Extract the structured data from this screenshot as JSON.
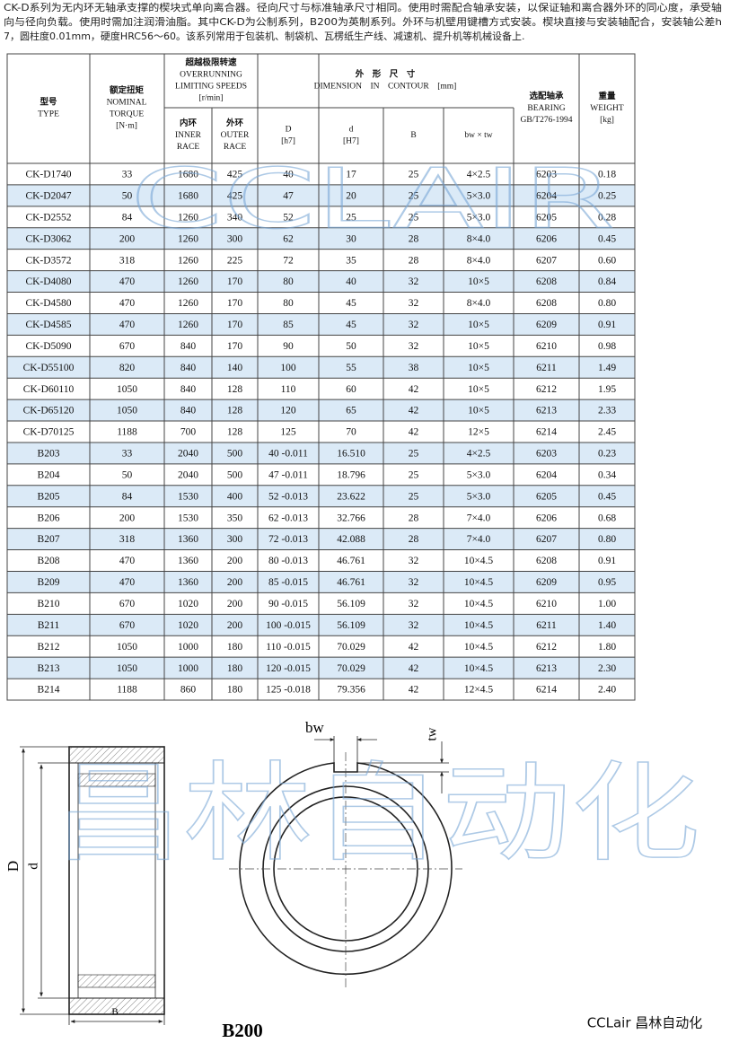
{
  "intro": {
    "lines": [
      "CK-D系列为无内环无轴承支撑的楔块式单向离合器。径向尺寸与标准轴承尺寸相同。使用时需配合轴承安装，以保证轴和离合器外环的同心度，承受轴",
      "向与径向负载。使用时需加注润滑油脂。其中CK-D为公制系列，B200为英制系列。外环与机壁用键槽方式安装。楔块直接与安装轴配合，安装轴公差h",
      "7，圆柱度0.01mm，硬度HRC56～60。该系列常用于包装机、制袋机、瓦楞纸生产线、减速机、提升机等机械设备上."
    ]
  },
  "table": {
    "header_cells": [
      {
        "lines": [
          "型号",
          "TYPE"
        ]
      },
      {
        "lines": [
          "额定扭矩",
          "NOMINAL",
          "TORQUE",
          "[N·m]"
        ]
      },
      {
        "lines": [
          "超越极限转速",
          "OVERRUNNING",
          "LIMITING SPEEDS",
          "[r/min]"
        ]
      },
      {
        "lines": [
          "内环",
          "INNER",
          "RACE"
        ]
      },
      {
        "lines": [
          "外环",
          "OUTER",
          "RACE"
        ]
      },
      {
        "lines": [
          "外　形　尺　寸",
          "DIMENSION　IN　CONTOUR　[mm]"
        ]
      },
      {
        "lines": [
          "D",
          "[h7]"
        ]
      },
      {
        "lines": [
          "d",
          "[H7]"
        ]
      },
      {
        "lines": [
          "B"
        ]
      },
      {
        "lines": [
          "bw × tw"
        ]
      },
      {
        "lines": [
          "选配轴承",
          "BEARING",
          "GB/T276-1994"
        ]
      },
      {
        "lines": [
          "重量",
          "WEIGHT",
          "[kg]"
        ]
      }
    ],
    "rows": [
      [
        "CK-D1740",
        "33",
        "1680",
        "425",
        "40",
        "17",
        "25",
        "4×2.5",
        "6203",
        "0.18"
      ],
      [
        "CK-D2047",
        "50",
        "1680",
        "425",
        "47",
        "20",
        "25",
        "5×3.0",
        "6204",
        "0.25"
      ],
      [
        "CK-D2552",
        "84",
        "1260",
        "340",
        "52",
        "25",
        "25",
        "5×3.0",
        "6205",
        "0.28"
      ],
      [
        "CK-D3062",
        "200",
        "1260",
        "300",
        "62",
        "30",
        "28",
        "8×4.0",
        "6206",
        "0.45"
      ],
      [
        "CK-D3572",
        "318",
        "1260",
        "225",
        "72",
        "35",
        "28",
        "8×4.0",
        "6207",
        "0.60"
      ],
      [
        "CK-D4080",
        "470",
        "1260",
        "170",
        "80",
        "40",
        "32",
        "10×5",
        "6208",
        "0.84"
      ],
      [
        "CK-D4580",
        "470",
        "1260",
        "170",
        "80",
        "45",
        "32",
        "8×4.0",
        "6208",
        "0.80"
      ],
      [
        "CK-D4585",
        "470",
        "1260",
        "170",
        "85",
        "45",
        "32",
        "10×5",
        "6209",
        "0.91"
      ],
      [
        "CK-D5090",
        "670",
        "840",
        "170",
        "90",
        "50",
        "32",
        "10×5",
        "6210",
        "0.98"
      ],
      [
        "CK-D55100",
        "820",
        "840",
        "140",
        "100",
        "55",
        "38",
        "10×5",
        "6211",
        "1.49"
      ],
      [
        "CK-D60110",
        "1050",
        "840",
        "128",
        "110",
        "60",
        "42",
        "10×5",
        "6212",
        "1.95"
      ],
      [
        "CK-D65120",
        "1050",
        "840",
        "128",
        "120",
        "65",
        "42",
        "10×5",
        "6213",
        "2.33"
      ],
      [
        "CK-D70125",
        "1188",
        "700",
        "128",
        "125",
        "70",
        "42",
        "12×5",
        "6214",
        "2.45"
      ],
      [
        "B203",
        "33",
        "2040",
        "500",
        "40 -0.011",
        "16.510",
        "25",
        "4×2.5",
        "6203",
        "0.23"
      ],
      [
        "B204",
        "50",
        "2040",
        "500",
        "47 -0.011",
        "18.796",
        "25",
        "5×3.0",
        "6204",
        "0.34"
      ],
      [
        "B205",
        "84",
        "1530",
        "400",
        "52 -0.013",
        "23.622",
        "25",
        "5×3.0",
        "6205",
        "0.45"
      ],
      [
        "B206",
        "200",
        "1530",
        "350",
        "62 -0.013",
        "32.766",
        "28",
        "7×4.0",
        "6206",
        "0.68"
      ],
      [
        "B207",
        "318",
        "1360",
        "300",
        "72 -0.013",
        "42.088",
        "28",
        "7×4.0",
        "6207",
        "0.80"
      ],
      [
        "B208",
        "470",
        "1360",
        "200",
        "80 -0.013",
        "46.761",
        "32",
        "10×4.5",
        "6208",
        "0.91"
      ],
      [
        "B209",
        "470",
        "1360",
        "200",
        "85 -0.015",
        "46.761",
        "32",
        "10×4.5",
        "6209",
        "0.95"
      ],
      [
        "B210",
        "670",
        "1020",
        "200",
        "90 -0.015",
        "56.109",
        "32",
        "10×4.5",
        "6210",
        "1.00"
      ],
      [
        "B211",
        "670",
        "1020",
        "200",
        "100 -0.015",
        "56.109",
        "32",
        "10×4.5",
        "6211",
        "1.40"
      ],
      [
        "B212",
        "1050",
        "1000",
        "180",
        "110 -0.015",
        "70.029",
        "42",
        "10×4.5",
        "6212",
        "1.80"
      ],
      [
        "B213",
        "1050",
        "1000",
        "180",
        "120 -0.015",
        "70.029",
        "42",
        "10×4.5",
        "6213",
        "2.30"
      ],
      [
        "B214",
        "1188",
        "860",
        "180",
        "125 -0.018",
        "79.356",
        "42",
        "12×4.5",
        "6214",
        "2.40"
      ]
    ]
  },
  "watermarks": {
    "table": "CCLAIR",
    "drawing": "昌林自动化"
  },
  "drawing": {
    "bw": "bw",
    "tw": "tw",
    "D": "D",
    "d": "d",
    "B": "B",
    "title": "B200",
    "brand": "CCLair 昌林自动化"
  }
}
